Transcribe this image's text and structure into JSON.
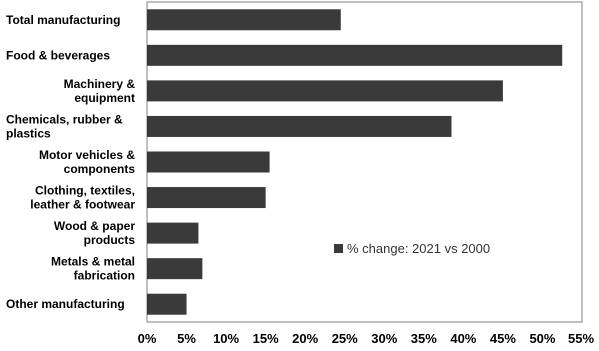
{
  "chart_data": {
    "type": "bar",
    "orientation": "horizontal",
    "categories": [
      [
        "Total manufacturing"
      ],
      [
        "Food & beverages"
      ],
      [
        "Machinery &",
        "equipment"
      ],
      [
        "Chemicals, rubber &",
        "plastics"
      ],
      [
        "Motor vehicles &",
        "components"
      ],
      [
        "Clothing, textiles,",
        "leather & footwear"
      ],
      [
        "Wood & paper",
        "products"
      ],
      [
        "Metals & metal",
        "fabrication"
      ],
      [
        "Other manufacturing"
      ]
    ],
    "series": [
      {
        "name": "% change: 2021 vs 2000",
        "values": [
          24.5,
          52.5,
          45.0,
          38.5,
          15.5,
          15.0,
          6.5,
          7.0,
          5.0
        ]
      }
    ],
    "x_ticks": [
      "0%",
      "5%",
      "10%",
      "15%",
      "20%",
      "25%",
      "30%",
      "35%",
      "40%",
      "45%",
      "50%",
      "55%"
    ],
    "xlim": [
      0,
      55
    ],
    "grid": false,
    "legend_position": "center-right",
    "colors": {
      "bar": "#3a3a3a",
      "border": "#808080"
    }
  }
}
